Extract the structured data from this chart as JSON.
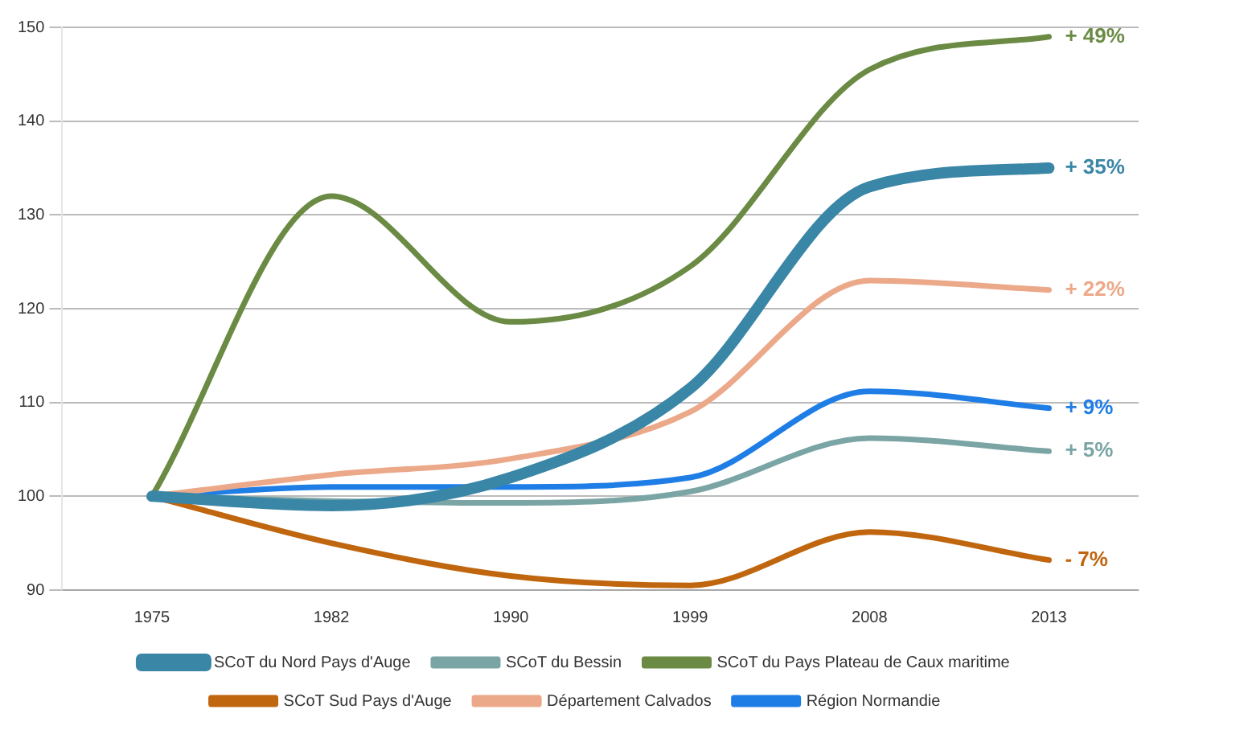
{
  "chart_data": {
    "type": "line",
    "categories": [
      "1975",
      "1982",
      "1990",
      "1999",
      "2008",
      "2013"
    ],
    "series": [
      {
        "name": "SCoT du Nord Pays d'Auge",
        "color": "#3a86a6",
        "values": [
          100,
          99,
          102,
          111.5,
          133,
          135
        ]
      },
      {
        "name": "SCoT du Bessin",
        "color": "#7ba5a5",
        "values": [
          100,
          99.5,
          99.3,
          100.5,
          106.2,
          104.8
        ]
      },
      {
        "name": "SCoT du Pays Plateau de Caux maritime",
        "color": "#6b8b45",
        "values": [
          100,
          132,
          118.6,
          124.5,
          145.5,
          149
        ]
      },
      {
        "name": "SCoT Sud Pays d'Auge",
        "color": "#c0660e",
        "values": [
          100,
          95,
          91.5,
          90.5,
          96.2,
          93.2
        ]
      },
      {
        "name": "Département Calvados",
        "color": "#eca98a",
        "values": [
          100,
          102.3,
          104,
          109,
          123,
          122
        ]
      },
      {
        "name": "Région Normandie",
        "color": "#1f7ee6",
        "values": [
          100,
          101,
          101,
          102,
          111.2,
          109.4
        ]
      }
    ],
    "ylim": [
      90,
      150
    ],
    "yticks": [
      90,
      100,
      110,
      120,
      130,
      140,
      150
    ],
    "grid": "y",
    "legend": "bottom",
    "annotations": [
      {
        "text": "+ 49%",
        "x": "2013",
        "y": 149
      },
      {
        "text": "+ 35%",
        "x": "2013",
        "y": 135
      },
      {
        "text": "+ 22%",
        "x": "2013",
        "y": 122
      },
      {
        "text": "+ 9%",
        "x": "2013",
        "y": 109.4
      },
      {
        "text": "+ 5%",
        "x": "2013",
        "y": 104.8
      },
      {
        "text": "- 7%",
        "x": "2013",
        "y": 93.2
      }
    ]
  }
}
